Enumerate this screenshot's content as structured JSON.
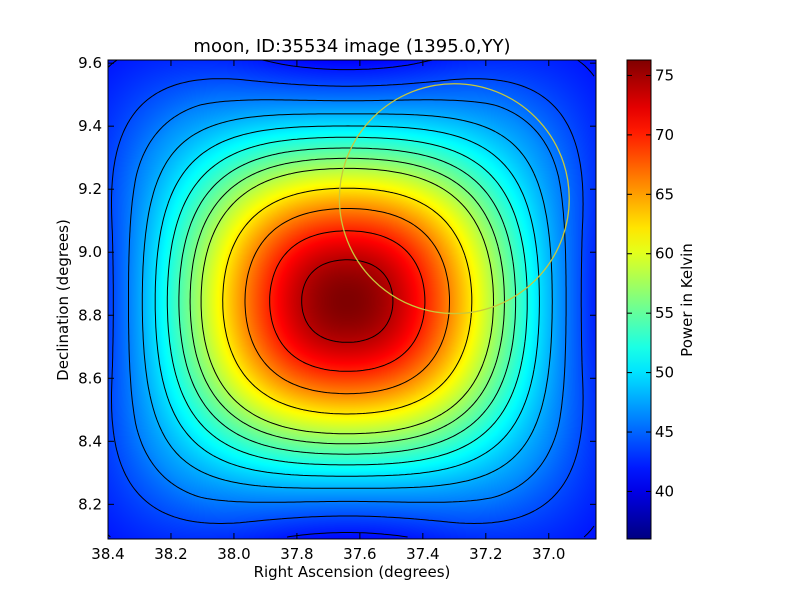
{
  "chart_data": {
    "type": "heatmap",
    "title": "moon, ID:35534 image (1395.0,YY)",
    "xlabel": "Right Ascension (degrees)",
    "ylabel": "Declination (degrees)",
    "xlim": [
      38.4,
      36.85
    ],
    "ylim": [
      8.09,
      9.61
    ],
    "x_ticks": [
      "38.4",
      "38.2",
      "38.0",
      "37.8",
      "37.6",
      "37.4",
      "37.2",
      "37.0"
    ],
    "y_ticks": [
      "8.2",
      "8.4",
      "8.6",
      "8.8",
      "9.0",
      "9.2",
      "9.4",
      "9.6"
    ],
    "colorbar": {
      "label": "Power in Kelvin",
      "range": [
        36.0,
        76.3
      ],
      "ticks": [
        "40",
        "45",
        "50",
        "55",
        "60",
        "65",
        "70",
        "75"
      ],
      "colormap": "jet"
    },
    "peak": {
      "ra": 37.64,
      "dec": 8.845,
      "value": 76.3
    },
    "contour_levels": [
      38,
      40,
      42,
      44,
      46,
      48,
      50,
      52,
      54,
      56,
      58,
      62,
      66,
      70,
      74
    ],
    "circle": {
      "ra": 37.3,
      "dec": 9.17,
      "radius_deg": 0.365,
      "color": "#c8c83c"
    }
  }
}
